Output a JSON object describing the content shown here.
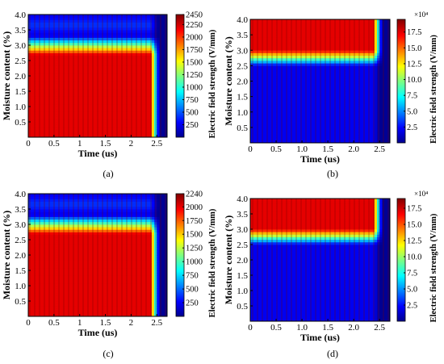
{
  "chart_data": [
    {
      "panel": "(a)",
      "type": "heatmap",
      "xlabel": "Time  (us)",
      "ylabel": "Moisture content  (%)",
      "colorbar_label": "Electric field strength  (V/mm)",
      "xticks": [
        "0",
        "0.5",
        "1",
        "1.5",
        "2",
        "2.5"
      ],
      "yticks": [
        "0.5",
        "1.0",
        "1.5",
        "2.0",
        "2.5",
        "3.0",
        "3.5",
        "4.0"
      ],
      "colorbar_ticks": [
        "250",
        "500",
        "750",
        "1000",
        "1250",
        "1500",
        "1750",
        "2000",
        "2250",
        "2450"
      ],
      "colorbar_exponent": "",
      "xlim": [
        0,
        2.7
      ],
      "ylim": [
        0,
        4.0
      ],
      "clim": [
        0,
        2450
      ],
      "pulse_end_us": 2.5,
      "high_field_upper_moisture": 2.7,
      "transition_width": 0.6
    },
    {
      "panel": "(b)",
      "type": "heatmap",
      "xlabel": "Time  (us)",
      "ylabel": "Moisture content  (%)",
      "colorbar_label": "Electric field strength  (V/mm)",
      "xticks": [
        "0",
        "0.5",
        "1.0",
        "1.5",
        "2.0",
        "2.5"
      ],
      "yticks": [
        "0.5",
        "1.0",
        "1.5",
        "2.0",
        "2.5",
        "3.0",
        "3.5",
        "4.0"
      ],
      "colorbar_ticks": [
        "2.5",
        "5.0",
        "7.5",
        "10.0",
        "12.5",
        "15.0",
        "17.5"
      ],
      "colorbar_exponent": "×10⁴",
      "xlim": [
        0,
        2.7
      ],
      "ylim": [
        0,
        4.0
      ],
      "clim": [
        0,
        19.5
      ],
      "pulse_end_us": 2.5,
      "high_field_lower_moisture": 3.0,
      "transition_width": 0.5
    },
    {
      "panel": "(c)",
      "type": "heatmap",
      "xlabel": "Time  (us)",
      "ylabel": "Moisture content  (%)",
      "colorbar_label": "Electric field strength  (V/mm)",
      "xticks": [
        "0",
        "0.5",
        "1",
        "1.5",
        "2",
        "2.5"
      ],
      "yticks": [
        "0.5",
        "1.0",
        "1.5",
        "2.0",
        "2.5",
        "3.0",
        "3.5",
        "4.0"
      ],
      "colorbar_ticks": [
        "250",
        "500",
        "750",
        "1000",
        "1250",
        "1500",
        "1750",
        "2000",
        "2240"
      ],
      "colorbar_exponent": "",
      "xlim": [
        0,
        2.7
      ],
      "ylim": [
        0,
        4.0
      ],
      "clim": [
        0,
        2240
      ],
      "pulse_end_us": 2.5,
      "high_field_upper_moisture": 2.7,
      "transition_width": 0.6
    },
    {
      "panel": "(d)",
      "type": "heatmap",
      "xlabel": "Time  (us)",
      "ylabel": "Moisture content  (%)",
      "colorbar_label": "Electric field strength  (V/mm)",
      "xticks": [
        "0",
        "0.5",
        "1.0",
        "1.5",
        "2.0",
        "2.5"
      ],
      "yticks": [
        "0.5",
        "1.0",
        "1.5",
        "2.0",
        "2.5",
        "3.0",
        "3.5",
        "4.0"
      ],
      "colorbar_ticks": [
        "2.5",
        "5.0",
        "7.5",
        "10.0",
        "12.5",
        "15.0",
        "17.5"
      ],
      "colorbar_exponent": "×10⁴",
      "xlim": [
        0,
        2.7
      ],
      "ylim": [
        0,
        4.0
      ],
      "clim": [
        0,
        19.0
      ],
      "pulse_end_us": 2.5,
      "high_field_lower_moisture": 3.0,
      "transition_width": 0.5
    }
  ]
}
